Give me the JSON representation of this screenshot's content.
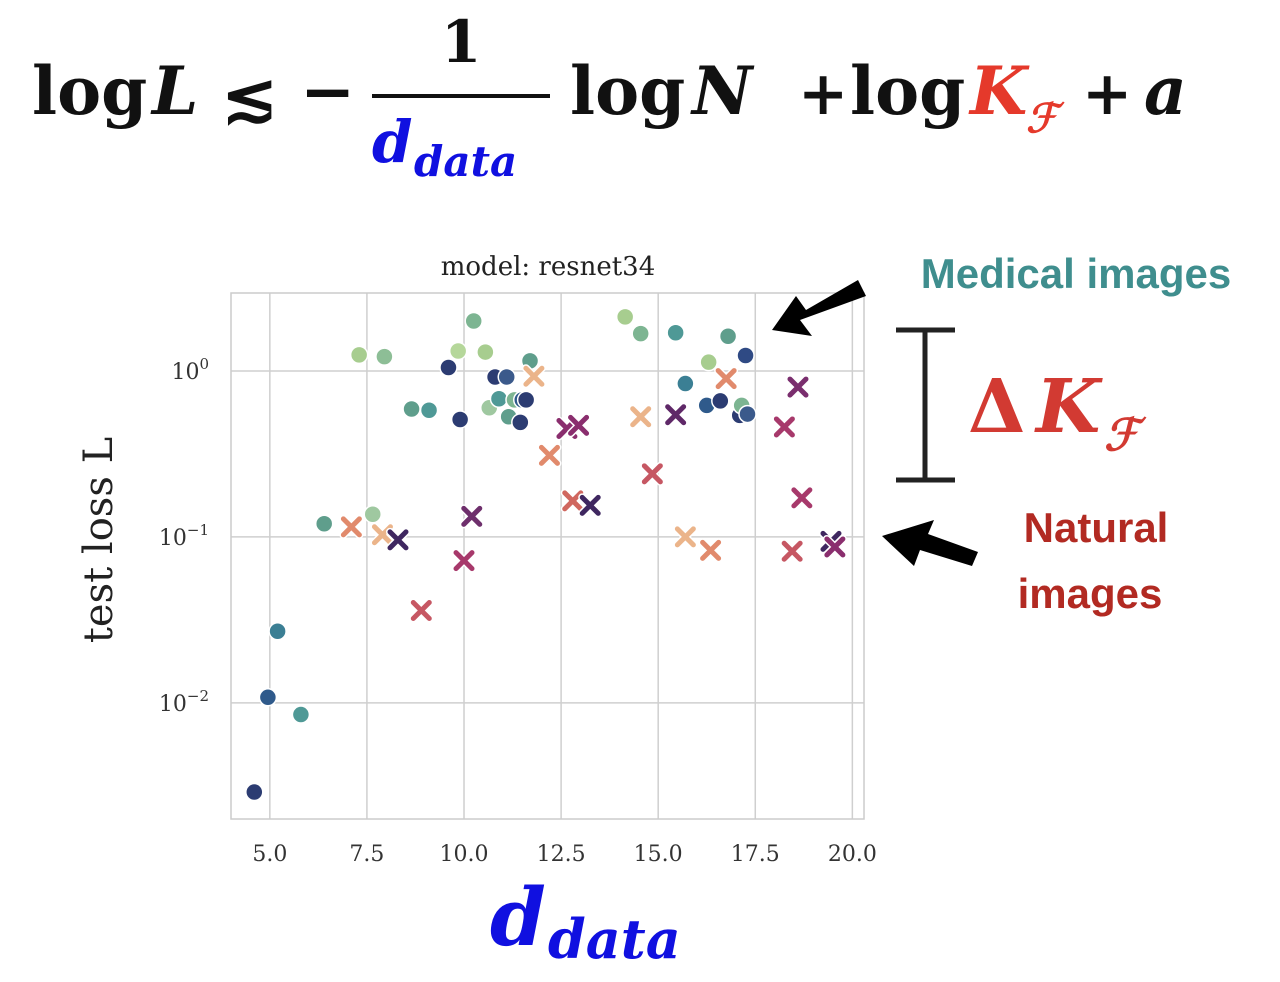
{
  "equation": {
    "lhs_log": "log",
    "lhs_var": "L",
    "relation": "≲",
    "minus": "−",
    "numerator": "1",
    "denominator_main": "d",
    "denominator_sub": "data",
    "term2_log": "log",
    "term2_var": "N",
    "plus1": "+",
    "term3_log": "log",
    "term3_var": "K",
    "term3_sub": "ℱ",
    "plus2": "+",
    "term4": "a",
    "colors": {
      "data_dim": "#1010e0",
      "complexity": "#e5392b",
      "text": "#111111"
    }
  },
  "annotations": {
    "medical": "Medical images",
    "natural_line1": "Natural",
    "natural_line2": "images",
    "delta_symbol": "Δ",
    "delta_var": "K",
    "delta_sub": "ℱ",
    "colors": {
      "medical": "#3f8e8e",
      "natural": "#b22a22",
      "delta": "#d23a32",
      "arrow": "#000000"
    }
  },
  "chart_data": {
    "type": "scatter",
    "title": "model: resnet34",
    "ylabel": "test loss L",
    "xlabel_main": "d",
    "xlabel_sub": "data",
    "xlim": [
      4.0,
      20.3
    ],
    "ylim_log10": [
      -2.7,
      0.47
    ],
    "yscale": "log",
    "grid": true,
    "xticks": [
      5.0,
      7.5,
      10.0,
      12.5,
      15.0,
      17.5,
      20.0
    ],
    "xtick_labels": [
      "5.0",
      "7.5",
      "10.0",
      "12.5",
      "15.0",
      "17.5",
      "20.0"
    ],
    "yticks": [
      1,
      0.1,
      0.01
    ],
    "ytick_labels": [
      {
        "base": "10",
        "exp": "0"
      },
      {
        "base": "10",
        "exp": "−1"
      },
      {
        "base": "10",
        "exp": "−2"
      }
    ],
    "series": [
      {
        "marker": "circle",
        "points": [
          {
            "x": 4.6,
            "y": 0.0029,
            "c": "#2c3c72"
          },
          {
            "x": 4.95,
            "y": 0.0108,
            "c": "#2f5a8b"
          },
          {
            "x": 5.2,
            "y": 0.027,
            "c": "#3b7f94"
          },
          {
            "x": 5.8,
            "y": 0.0085,
            "c": "#4f9996"
          },
          {
            "x": 6.4,
            "y": 0.12,
            "c": "#5f9e8c"
          },
          {
            "x": 7.3,
            "y": 1.25,
            "c": "#a7cd8f"
          },
          {
            "x": 7.65,
            "y": 0.137,
            "c": "#9fc8a0"
          },
          {
            "x": 7.95,
            "y": 1.22,
            "c": "#8dbe96"
          },
          {
            "x": 8.65,
            "y": 0.59,
            "c": "#5f9e8c"
          },
          {
            "x": 9.1,
            "y": 0.58,
            "c": "#4f9996"
          },
          {
            "x": 9.6,
            "y": 1.05,
            "c": "#2c3c72"
          },
          {
            "x": 9.85,
            "y": 1.32,
            "c": "#b5d79a"
          },
          {
            "x": 9.9,
            "y": 0.51,
            "c": "#2c3c72"
          },
          {
            "x": 10.25,
            "y": 2.0,
            "c": "#7db592"
          },
          {
            "x": 10.55,
            "y": 1.3,
            "c": "#a7cd8f"
          },
          {
            "x": 10.65,
            "y": 0.6,
            "c": "#9fc8a0"
          },
          {
            "x": 10.8,
            "y": 0.92,
            "c": "#2c3c72"
          },
          {
            "x": 10.9,
            "y": 0.68,
            "c": "#4f9996"
          },
          {
            "x": 11.1,
            "y": 0.92,
            "c": "#3b5a8b"
          },
          {
            "x": 11.15,
            "y": 0.53,
            "c": "#5f9e8c"
          },
          {
            "x": 11.3,
            "y": 0.67,
            "c": "#7db592"
          },
          {
            "x": 11.45,
            "y": 0.49,
            "c": "#2c3c72"
          },
          {
            "x": 11.5,
            "y": 0.67,
            "c": "#2f5a8b"
          },
          {
            "x": 11.6,
            "y": 0.67,
            "c": "#2c3c72"
          },
          {
            "x": 11.7,
            "y": 1.15,
            "c": "#5f9e8c"
          },
          {
            "x": 14.15,
            "y": 2.12,
            "c": "#a7cd8f"
          },
          {
            "x": 14.55,
            "y": 1.68,
            "c": "#7db592"
          },
          {
            "x": 15.45,
            "y": 1.7,
            "c": "#4f9996"
          },
          {
            "x": 15.7,
            "y": 0.84,
            "c": "#3b7f94"
          },
          {
            "x": 16.25,
            "y": 0.62,
            "c": "#2f5a8b"
          },
          {
            "x": 16.3,
            "y": 1.13,
            "c": "#a7cd8f"
          },
          {
            "x": 16.6,
            "y": 0.66,
            "c": "#2c3c72"
          },
          {
            "x": 16.8,
            "y": 1.62,
            "c": "#5f9e8c"
          },
          {
            "x": 17.1,
            "y": 0.54,
            "c": "#2c3c72"
          },
          {
            "x": 17.15,
            "y": 0.62,
            "c": "#7db592"
          },
          {
            "x": 17.25,
            "y": 1.24,
            "c": "#2f4a84"
          },
          {
            "x": 17.3,
            "y": 0.55,
            "c": "#3b5a8b"
          }
        ]
      },
      {
        "marker": "x",
        "points": [
          {
            "x": 7.1,
            "y": 0.115,
            "c": "#e18a6c"
          },
          {
            "x": 7.9,
            "y": 0.103,
            "c": "#ebb48a"
          },
          {
            "x": 8.3,
            "y": 0.096,
            "c": "#3f2760"
          },
          {
            "x": 8.9,
            "y": 0.036,
            "c": "#c65763"
          },
          {
            "x": 10.0,
            "y": 0.072,
            "c": "#a7396b"
          },
          {
            "x": 10.2,
            "y": 0.133,
            "c": "#6e2f6c"
          },
          {
            "x": 11.8,
            "y": 0.93,
            "c": "#ebb48a"
          },
          {
            "x": 12.2,
            "y": 0.31,
            "c": "#e18a6c"
          },
          {
            "x": 12.65,
            "y": 0.45,
            "c": "#8a2e6e"
          },
          {
            "x": 12.8,
            "y": 0.165,
            "c": "#d0675f"
          },
          {
            "x": 12.95,
            "y": 0.47,
            "c": "#8a2e6e"
          },
          {
            "x": 13.25,
            "y": 0.155,
            "c": "#3f2760"
          },
          {
            "x": 14.55,
            "y": 0.53,
            "c": "#ebb48a"
          },
          {
            "x": 14.85,
            "y": 0.24,
            "c": "#c65763"
          },
          {
            "x": 15.45,
            "y": 0.545,
            "c": "#5f2868"
          },
          {
            "x": 15.7,
            "y": 0.1,
            "c": "#ebb48a"
          },
          {
            "x": 16.35,
            "y": 0.083,
            "c": "#e18a6c"
          },
          {
            "x": 16.75,
            "y": 0.9,
            "c": "#e18a6c"
          },
          {
            "x": 18.25,
            "y": 0.46,
            "c": "#a7396b"
          },
          {
            "x": 18.45,
            "y": 0.082,
            "c": "#c65763"
          },
          {
            "x": 18.6,
            "y": 0.8,
            "c": "#7a2e6e"
          },
          {
            "x": 18.7,
            "y": 0.172,
            "c": "#a7396b"
          },
          {
            "x": 19.45,
            "y": 0.094,
            "c": "#3f2760"
          },
          {
            "x": 19.55,
            "y": 0.087,
            "c": "#8a2e6e"
          }
        ]
      }
    ]
  }
}
